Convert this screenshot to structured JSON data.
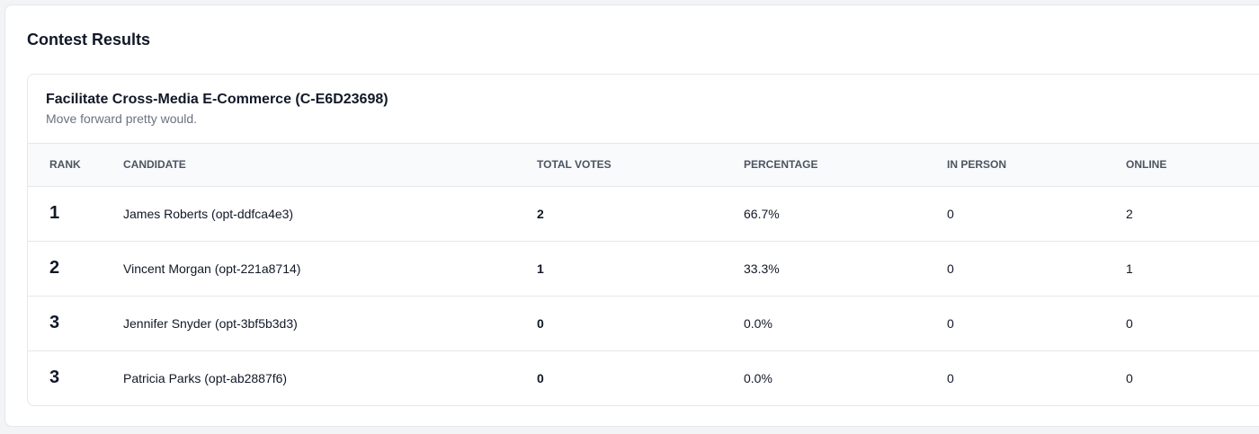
{
  "page": {
    "title": "Contest Results"
  },
  "contest": {
    "title": "Facilitate Cross-Media E-Commerce (C-E6D23698)",
    "subtitle": "Move forward pretty would."
  },
  "table": {
    "headers": {
      "rank": "RANK",
      "candidate": "CANDIDATE",
      "total_votes": "TOTAL VOTES",
      "percentage": "PERCENTAGE",
      "in_person": "IN PERSON",
      "online": "ONLINE"
    },
    "rows": [
      {
        "rank": "1",
        "candidate": "James Roberts (opt-ddfca4e3)",
        "total_votes": "2",
        "percentage": "66.7%",
        "in_person": "0",
        "online": "2"
      },
      {
        "rank": "2",
        "candidate": "Vincent Morgan (opt-221a8714)",
        "total_votes": "1",
        "percentage": "33.3%",
        "in_person": "0",
        "online": "1"
      },
      {
        "rank": "3",
        "candidate": "Jennifer Snyder (opt-3bf5b3d3)",
        "total_votes": "0",
        "percentage": "0.0%",
        "in_person": "0",
        "online": "0"
      },
      {
        "rank": "3",
        "candidate": "Patricia Parks (opt-ab2887f6)",
        "total_votes": "0",
        "percentage": "0.0%",
        "in_person": "0",
        "online": "0"
      }
    ]
  }
}
